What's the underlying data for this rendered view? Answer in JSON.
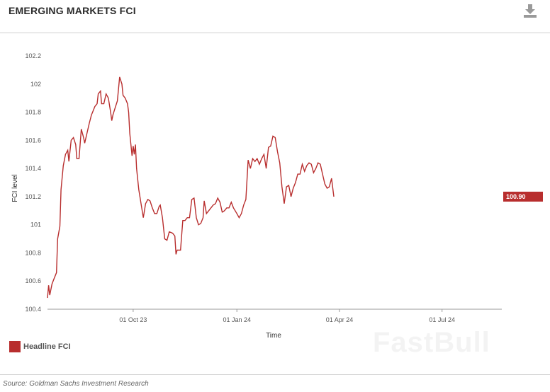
{
  "header": {
    "title": "EMERGING MARKETS FCI",
    "download_icon": "download-icon"
  },
  "footer": {
    "source": "Source: Goldman Sachs Investment Research"
  },
  "watermark": "FastBull",
  "colors": {
    "series": "#b82e2e",
    "axis": "#999999",
    "text": "#333333"
  },
  "chart_data": {
    "type": "line",
    "title": "EMERGING MARKETS FCI",
    "xlabel": "Time",
    "ylabel": "FCI level",
    "ylim": [
      100.4,
      102.2
    ],
    "xlim": [
      "2023-07-17",
      "2024-08-23"
    ],
    "yticks": [
      100.4,
      100.6,
      100.8,
      101,
      101.2,
      101.4,
      101.6,
      101.8,
      102,
      102.2
    ],
    "ytick_labels": [
      "100.4",
      "100.6",
      "100.8",
      "101",
      "101.2",
      "101.4",
      "101.6",
      "101.8",
      "102",
      "102.2"
    ],
    "xticks": [
      "2023-10-01",
      "2024-01-01",
      "2024-04-01",
      "2024-07-01"
    ],
    "xtick_labels": [
      "01 Oct 23",
      "01 Jan 24",
      "01 Apr 24",
      "01 Jul 24"
    ],
    "legend": {
      "position": "bottom-left",
      "entries": [
        "Headline FCI"
      ]
    },
    "last_value_label": "100.90",
    "series": [
      {
        "name": "Headline FCI",
        "color": "#b82e2e",
        "points": [
          [
            "2023-07-17",
            100.48
          ],
          [
            "2023-07-18",
            100.57
          ],
          [
            "2023-07-19",
            100.5
          ],
          [
            "2023-07-21",
            100.58
          ],
          [
            "2023-07-23",
            100.62
          ],
          [
            "2023-07-25",
            100.66
          ],
          [
            "2023-07-26",
            100.9
          ],
          [
            "2023-07-28",
            100.99
          ],
          [
            "2023-07-29",
            101.25
          ],
          [
            "2023-07-31",
            101.42
          ],
          [
            "2023-08-02",
            101.5
          ],
          [
            "2023-08-04",
            101.53
          ],
          [
            "2023-08-05",
            101.45
          ],
          [
            "2023-08-07",
            101.6
          ],
          [
            "2023-08-09",
            101.62
          ],
          [
            "2023-08-11",
            101.57
          ],
          [
            "2023-08-12",
            101.47
          ],
          [
            "2023-08-14",
            101.47
          ],
          [
            "2023-08-16",
            101.68
          ],
          [
            "2023-08-18",
            101.62
          ],
          [
            "2023-08-19",
            101.58
          ],
          [
            "2023-08-21",
            101.65
          ],
          [
            "2023-08-23",
            101.72
          ],
          [
            "2023-08-25",
            101.78
          ],
          [
            "2023-08-26",
            101.8
          ],
          [
            "2023-08-28",
            101.84
          ],
          [
            "2023-08-30",
            101.86
          ],
          [
            "2023-08-31",
            101.93
          ],
          [
            "2023-09-02",
            101.95
          ],
          [
            "2023-09-03",
            101.86
          ],
          [
            "2023-09-05",
            101.86
          ],
          [
            "2023-09-07",
            101.93
          ],
          [
            "2023-09-09",
            101.9
          ],
          [
            "2023-09-11",
            101.8
          ],
          [
            "2023-09-12",
            101.74
          ],
          [
            "2023-09-13",
            101.78
          ],
          [
            "2023-09-15",
            101.83
          ],
          [
            "2023-09-17",
            101.88
          ],
          [
            "2023-09-19",
            102.05
          ],
          [
            "2023-09-21",
            102.0
          ],
          [
            "2023-09-22",
            101.92
          ],
          [
            "2023-09-24",
            101.9
          ],
          [
            "2023-09-26",
            101.86
          ],
          [
            "2023-09-27",
            101.8
          ],
          [
            "2023-09-28",
            101.65
          ],
          [
            "2023-09-30",
            101.49
          ],
          [
            "2023-10-01",
            101.56
          ],
          [
            "2023-10-02",
            101.5
          ],
          [
            "2023-10-03",
            101.57
          ],
          [
            "2023-10-04",
            101.4
          ],
          [
            "2023-10-06",
            101.25
          ],
          [
            "2023-10-08",
            101.15
          ],
          [
            "2023-10-10",
            101.05
          ],
          [
            "2023-10-12",
            101.15
          ],
          [
            "2023-10-14",
            101.18
          ],
          [
            "2023-10-16",
            101.17
          ],
          [
            "2023-10-18",
            101.12
          ],
          [
            "2023-10-20",
            101.08
          ],
          [
            "2023-10-22",
            101.08
          ],
          [
            "2023-10-24",
            101.13
          ],
          [
            "2023-10-25",
            101.14
          ],
          [
            "2023-10-27",
            101.05
          ],
          [
            "2023-10-29",
            100.9
          ],
          [
            "2023-10-31",
            100.89
          ],
          [
            "2023-11-02",
            100.95
          ],
          [
            "2023-11-05",
            100.94
          ],
          [
            "2023-11-07",
            100.92
          ],
          [
            "2023-11-08",
            100.79
          ],
          [
            "2023-11-09",
            100.82
          ],
          [
            "2023-11-11",
            100.82
          ],
          [
            "2023-11-12",
            100.82
          ],
          [
            "2023-11-14",
            101.03
          ],
          [
            "2023-11-16",
            101.03
          ],
          [
            "2023-11-18",
            101.05
          ],
          [
            "2023-11-20",
            101.05
          ],
          [
            "2023-11-22",
            101.18
          ],
          [
            "2023-11-24",
            101.19
          ],
          [
            "2023-11-26",
            101.05
          ],
          [
            "2023-11-28",
            101.0
          ],
          [
            "2023-11-30",
            101.01
          ],
          [
            "2023-12-02",
            101.05
          ],
          [
            "2023-12-03",
            101.17
          ],
          [
            "2023-12-05",
            101.08
          ],
          [
            "2023-12-07",
            101.1
          ],
          [
            "2023-12-09",
            101.12
          ],
          [
            "2023-12-11",
            101.14
          ],
          [
            "2023-12-13",
            101.15
          ],
          [
            "2023-12-15",
            101.19
          ],
          [
            "2023-12-17",
            101.16
          ],
          [
            "2023-12-19",
            101.09
          ],
          [
            "2023-12-21",
            101.1
          ],
          [
            "2023-12-23",
            101.12
          ],
          [
            "2023-12-25",
            101.12
          ],
          [
            "2023-12-27",
            101.16
          ],
          [
            "2023-12-29",
            101.12
          ],
          [
            "2024-01-01",
            101.08
          ],
          [
            "2024-01-03",
            101.05
          ],
          [
            "2024-01-05",
            101.08
          ],
          [
            "2024-01-07",
            101.14
          ],
          [
            "2024-01-09",
            101.18
          ],
          [
            "2024-01-11",
            101.46
          ],
          [
            "2024-01-13",
            101.4
          ],
          [
            "2024-01-15",
            101.47
          ],
          [
            "2024-01-17",
            101.45
          ],
          [
            "2024-01-19",
            101.47
          ],
          [
            "2024-01-21",
            101.43
          ],
          [
            "2024-01-23",
            101.47
          ],
          [
            "2024-01-25",
            101.5
          ],
          [
            "2024-01-27",
            101.4
          ],
          [
            "2024-01-29",
            101.55
          ],
          [
            "2024-01-31",
            101.56
          ],
          [
            "2024-02-02",
            101.63
          ],
          [
            "2024-02-04",
            101.62
          ],
          [
            "2024-02-06",
            101.52
          ],
          [
            "2024-02-08",
            101.44
          ],
          [
            "2024-02-10",
            101.27
          ],
          [
            "2024-02-12",
            101.15
          ],
          [
            "2024-02-14",
            101.27
          ],
          [
            "2024-02-16",
            101.28
          ],
          [
            "2024-02-18",
            101.2
          ],
          [
            "2024-02-20",
            101.26
          ],
          [
            "2024-02-22",
            101.3
          ],
          [
            "2024-02-24",
            101.36
          ],
          [
            "2024-02-26",
            101.36
          ],
          [
            "2024-02-28",
            101.43
          ],
          [
            "2024-03-01",
            101.38
          ],
          [
            "2024-03-03",
            101.42
          ],
          [
            "2024-03-05",
            101.44
          ],
          [
            "2024-03-07",
            101.43
          ],
          [
            "2024-03-09",
            101.37
          ],
          [
            "2024-03-11",
            101.4
          ],
          [
            "2024-03-13",
            101.44
          ],
          [
            "2024-03-15",
            101.43
          ],
          [
            "2024-03-17",
            101.36
          ],
          [
            "2024-03-19",
            101.29
          ],
          [
            "2024-03-21",
            101.26
          ],
          [
            "2024-03-23",
            101.27
          ],
          [
            "2024-03-25",
            101.33
          ],
          [
            "2024-03-27",
            101.2
          ]
        ]
      }
    ]
  }
}
